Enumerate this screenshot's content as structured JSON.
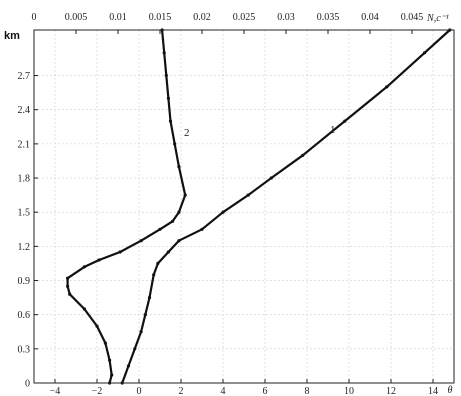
{
  "chart_data": {
    "type": "line",
    "title": "",
    "ylabel": "km",
    "y_ticks": [
      "0",
      "0.3",
      "0.6",
      "0.9",
      "1.2",
      "1.5",
      "1.8",
      "2.1",
      "2.4",
      "2.7"
    ],
    "ylim": [
      0,
      3.1
    ],
    "x_bottom": {
      "label": "θ",
      "ticks": [
        "−4",
        "−2",
        "0",
        "2",
        "4",
        "6",
        "8",
        "10",
        "12",
        "14"
      ],
      "lim": [
        -5,
        15
      ]
    },
    "x_top": {
      "label": "N,c⁻¹",
      "ticks": [
        "0",
        "0.005",
        "0.01",
        "0.015",
        "0.02",
        "0.025",
        "0.03",
        "0.035",
        "0.04",
        "0.045"
      ],
      "lim": [
        0,
        0.05
      ]
    },
    "grid": true,
    "series": [
      {
        "name": "1",
        "axis": "bottom",
        "y": [
          0.0,
          0.15,
          0.3,
          0.45,
          0.6,
          0.75,
          0.95,
          1.05,
          1.15,
          1.25,
          1.35,
          1.5,
          1.65,
          1.8,
          2.0,
          2.3,
          2.6,
          2.9,
          3.1
        ],
        "x": [
          -0.8,
          -0.5,
          -0.2,
          0.1,
          0.3,
          0.5,
          0.7,
          0.9,
          1.4,
          1.9,
          3.0,
          4.0,
          5.2,
          6.3,
          7.8,
          9.8,
          11.8,
          13.6,
          14.8
        ]
      },
      {
        "name": "2",
        "axis": "bottom",
        "y": [
          0.0,
          0.07,
          0.2,
          0.35,
          0.5,
          0.65,
          0.78,
          0.85,
          0.92,
          1.02,
          1.08,
          1.15,
          1.25,
          1.35,
          1.42,
          1.5,
          1.65,
          1.9,
          2.1,
          2.3,
          2.5,
          2.7,
          2.9,
          3.1
        ],
        "x": [
          -1.4,
          -1.3,
          -1.4,
          -1.6,
          -2.0,
          -2.6,
          -3.3,
          -3.4,
          -3.4,
          -2.6,
          -1.9,
          -0.9,
          0.1,
          1.0,
          1.6,
          1.9,
          2.2,
          1.9,
          1.7,
          1.5,
          1.4,
          1.3,
          1.2,
          1.1
        ]
      }
    ]
  }
}
